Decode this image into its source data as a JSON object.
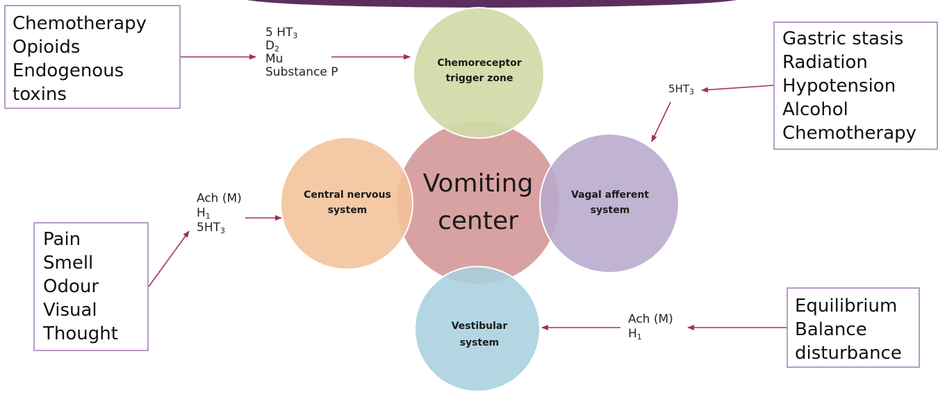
{
  "colors": {
    "box_border": "#b79ac7",
    "arrow": "#a0305f",
    "top_bar": "#5c2e5e",
    "ctz": "#cfdaa6",
    "cns": "#f2c29a",
    "vomiting": "#d9a2a2",
    "vagal": "#b8a8cc",
    "vestibular": "#a9d0de"
  },
  "circles": {
    "vomiting_center": {
      "line1": "Vomiting",
      "line2": "center"
    },
    "ctz": {
      "line1": "Chemoreceptor",
      "line2": "trigger zone"
    },
    "cns": {
      "line1": "Central nervous",
      "line2": "system"
    },
    "vagal": {
      "line1": "Vagal afferent",
      "line2": "system"
    },
    "vestibular": {
      "line1": "Vestibular",
      "line2": "system"
    }
  },
  "boxes": {
    "ctz_causes": [
      "Chemotherapy",
      "Opioids",
      "Endogenous",
      "toxins"
    ],
    "vagal_causes": [
      "Gastric stasis",
      "Radiation",
      "Hypotension",
      "Alcohol",
      "Chemotherapy"
    ],
    "cns_causes": [
      "Pain",
      "Smell",
      "Odour",
      "Visual",
      "Thought"
    ],
    "vestibular_causes": [
      "Equilibrium",
      "Balance",
      "disturbance"
    ]
  },
  "receptors": {
    "ctz": {
      "r1_base": "5 HT",
      "r1_sub": "3",
      "r2_base": "D",
      "r2_sub": "2",
      "r3": "Mu",
      "r4": "Substance P"
    },
    "vagal": {
      "r1_base": "5HT",
      "r1_sub": "3"
    },
    "cns": {
      "r1": "Ach (M)",
      "r2_base": "H",
      "r2_sub": "1",
      "r3_base": "5HT",
      "r3_sub": "3"
    },
    "vestibular": {
      "r1": "Ach (M)",
      "r2_base": "H",
      "r2_sub": "1"
    }
  }
}
